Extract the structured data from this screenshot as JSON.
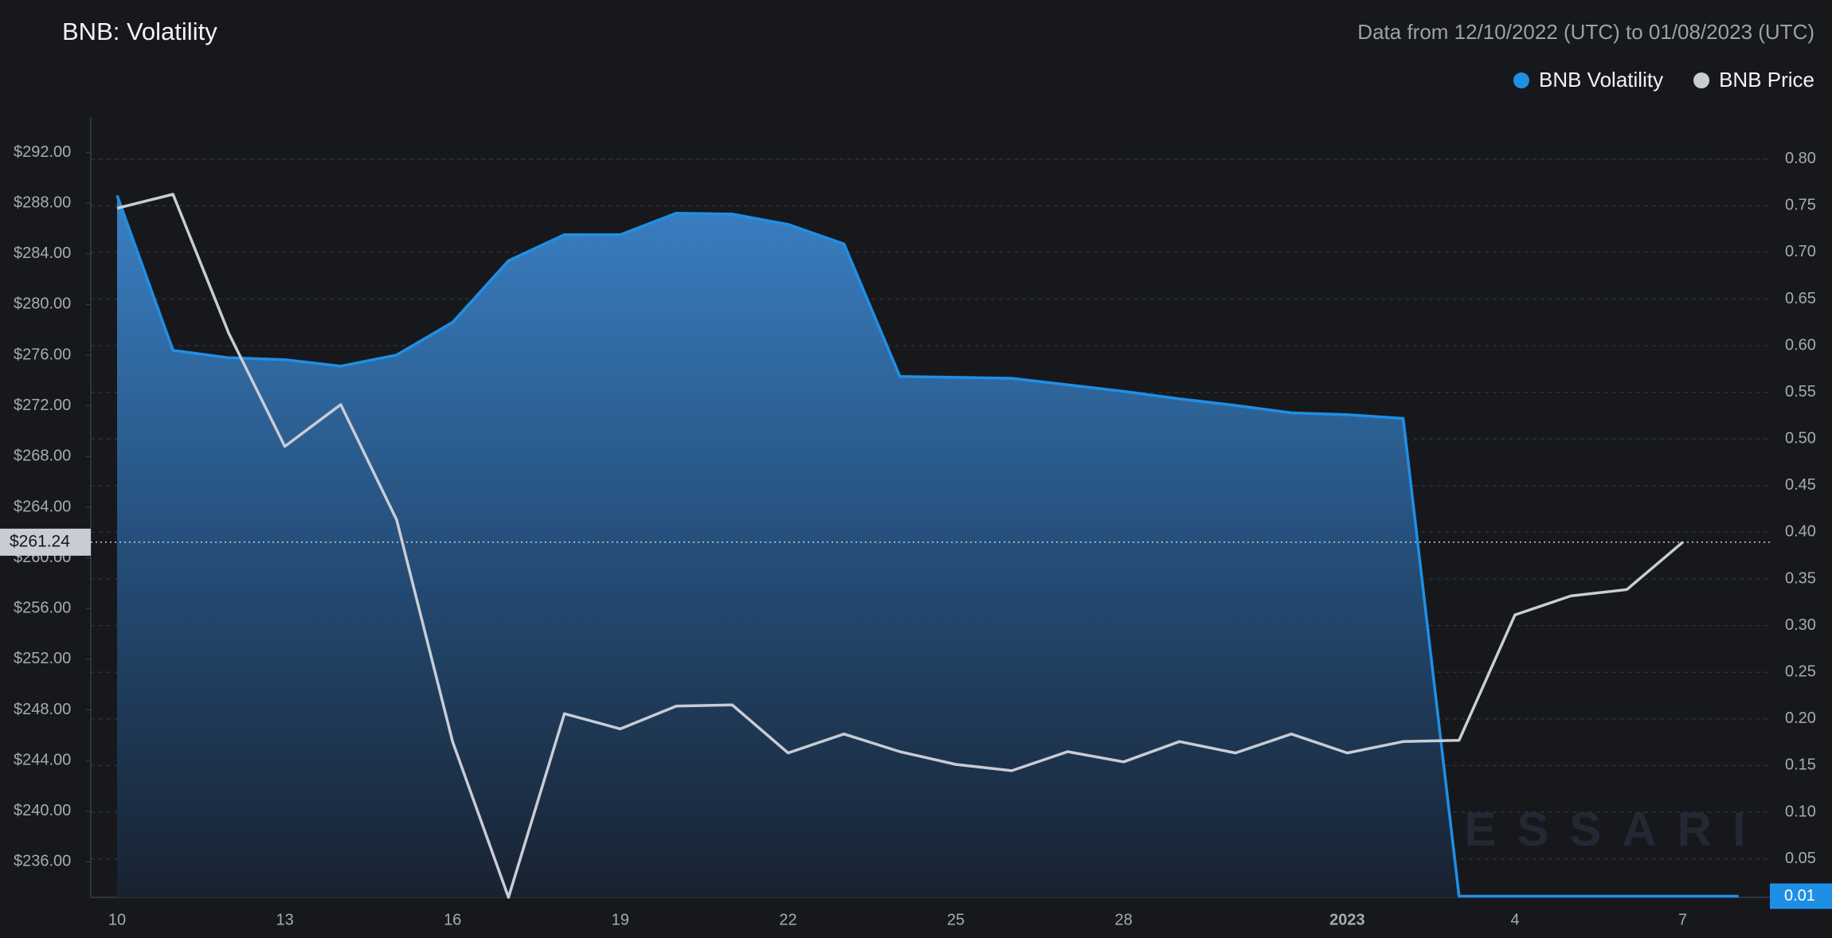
{
  "chart_data": {
    "type": "line",
    "title": "BNB: Volatility",
    "subtitle": "Data from 12/10/2022 (UTC) to 01/08/2023 (UTC)",
    "watermark": "MESSARI",
    "categories": [
      "10",
      null,
      null,
      "13",
      null,
      null,
      "16",
      null,
      null,
      "19",
      null,
      null,
      "22",
      null,
      null,
      "25",
      null,
      null,
      "28",
      null,
      null,
      null,
      "2023",
      null,
      null,
      "4",
      null,
      null,
      "7",
      null
    ],
    "series": [
      {
        "name": "BNB Volatility",
        "color": "#1f8fe6",
        "axis": "y2",
        "area": true,
        "values": [
          0.761,
          0.595,
          0.587,
          0.585,
          0.578,
          0.59,
          0.625,
          0.691,
          0.719,
          0.719,
          0.742,
          0.741,
          0.73,
          0.709,
          0.567,
          0.566,
          0.565,
          0.558,
          0.551,
          0.543,
          0.536,
          0.528,
          0.526,
          0.522,
          0.01,
          0.01,
          0.01,
          0.01,
          0.01,
          0.01
        ]
      },
      {
        "name": "BNB Price",
        "color": "#c9ccd5",
        "axis": "y",
        "values": [
          287.6,
          288.7,
          277.7,
          268.8,
          272.1,
          263.0,
          245.5,
          233.2,
          247.7,
          246.5,
          248.3,
          248.4,
          244.6,
          246.1,
          244.7,
          243.7,
          243.2,
          244.7,
          243.9,
          245.5,
          244.6,
          246.1,
          244.6,
          245.5,
          245.6,
          255.5,
          257.0,
          257.5,
          261.24,
          null
        ],
        "value_labels": [
          null,
          null,
          null,
          null,
          null,
          null,
          null,
          null,
          null,
          null,
          null,
          null,
          null,
          null,
          null,
          null,
          null,
          null,
          null,
          null,
          null,
          null,
          null,
          null,
          null,
          null,
          null,
          null,
          "$261.24",
          null
        ]
      }
    ],
    "ylim": [
      233.2,
      294.8
    ],
    "yticks": [
      {
        "value": 236,
        "label": "$236.00"
      },
      {
        "value": 240,
        "label": "$240.00"
      },
      {
        "value": 244,
        "label": "$244.00"
      },
      {
        "value": 248,
        "label": "$248.00"
      },
      {
        "value": 252,
        "label": "$252.00"
      },
      {
        "value": 256,
        "label": "$256.00"
      },
      {
        "value": 260,
        "label": "$260.00"
      },
      {
        "value": 264,
        "label": "$264.00"
      },
      {
        "value": 268,
        "label": "$268.00"
      },
      {
        "value": 272,
        "label": "$272.00"
      },
      {
        "value": 276,
        "label": "$276.00"
      },
      {
        "value": 280,
        "label": "$280.00"
      },
      {
        "value": 284,
        "label": "$284.00"
      },
      {
        "value": 288,
        "label": "$288.00"
      },
      {
        "value": 292,
        "label": "$292.00"
      }
    ],
    "y2lim": [
      0.0087,
      0.845
    ],
    "y2ticks": [
      0.05,
      {
        "value": 0.1,
        "label": "0.10"
      },
      0.15,
      {
        "value": 0.2,
        "label": "0.20"
      },
      0.25,
      {
        "value": 0.3,
        "label": "0.30"
      },
      0.35,
      {
        "value": 0.4,
        "label": "0.40"
      },
      0.45,
      {
        "value": 0.5,
        "label": "0.50"
      },
      0.55,
      {
        "value": 0.6,
        "label": "0.60"
      },
      0.65,
      {
        "value": 0.7,
        "label": "0.70"
      },
      0.75,
      {
        "value": 0.8,
        "label": "0.80"
      }
    ],
    "grid": true,
    "legend": "top-right"
  }
}
